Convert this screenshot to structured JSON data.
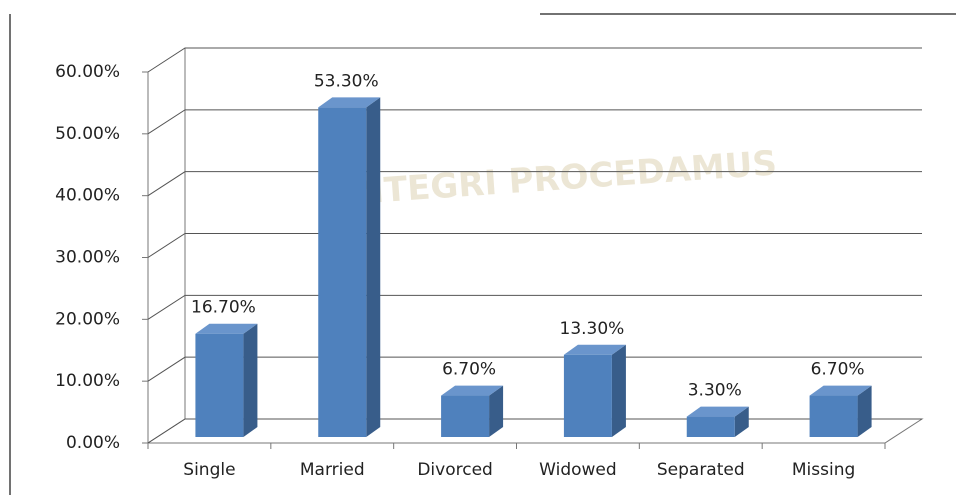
{
  "chart_data": {
    "type": "bar3d",
    "watermark": "INTEGRI PROCEDAMUS",
    "categories": [
      "Single",
      "Married",
      "Divorced",
      "Widowed",
      "Separated",
      "Missing"
    ],
    "values": [
      16.7,
      53.3,
      6.7,
      13.3,
      3.3,
      6.7
    ],
    "value_labels": [
      "16.70%",
      "53.30%",
      "6.70%",
      "13.30%",
      "3.30%",
      "6.70%"
    ],
    "color": "#4f81bd",
    "ylim": [
      0,
      60
    ],
    "yticks": [
      {
        "value": 0,
        "label": "0.00%"
      },
      {
        "value": 10,
        "label": "10.00%"
      },
      {
        "value": 20,
        "label": "20.00%"
      },
      {
        "value": 30,
        "label": "30.00%"
      },
      {
        "value": 40,
        "label": "40.00%"
      },
      {
        "value": 50,
        "label": "50.00%"
      },
      {
        "value": 60,
        "label": "60.00%"
      }
    ],
    "grid": true
  }
}
